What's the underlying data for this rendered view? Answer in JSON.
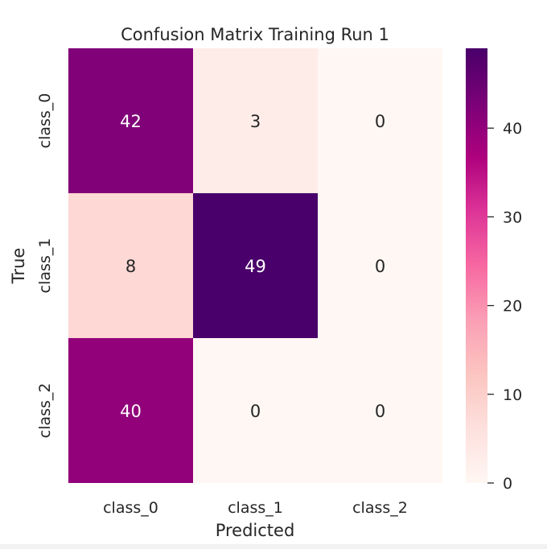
{
  "chart_data": {
    "type": "heatmap",
    "title": "Confusion Matrix Training Run 1",
    "xlabel": "Predicted",
    "ylabel": "True",
    "x_categories": [
      "class_0",
      "class_1",
      "class_2"
    ],
    "y_categories": [
      "class_0",
      "class_1",
      "class_2"
    ],
    "values": [
      [
        42,
        3,
        0
      ],
      [
        8,
        49,
        0
      ],
      [
        40,
        0,
        0
      ]
    ],
    "colorbar": {
      "range": [
        0,
        49
      ],
      "ticks": [
        "0",
        "10",
        "20",
        "30",
        "40"
      ]
    },
    "colors": {
      "low": "#fff7f3",
      "high": "#49006a",
      "text_dark": "#262626",
      "text_light": "#ffffff"
    }
  }
}
